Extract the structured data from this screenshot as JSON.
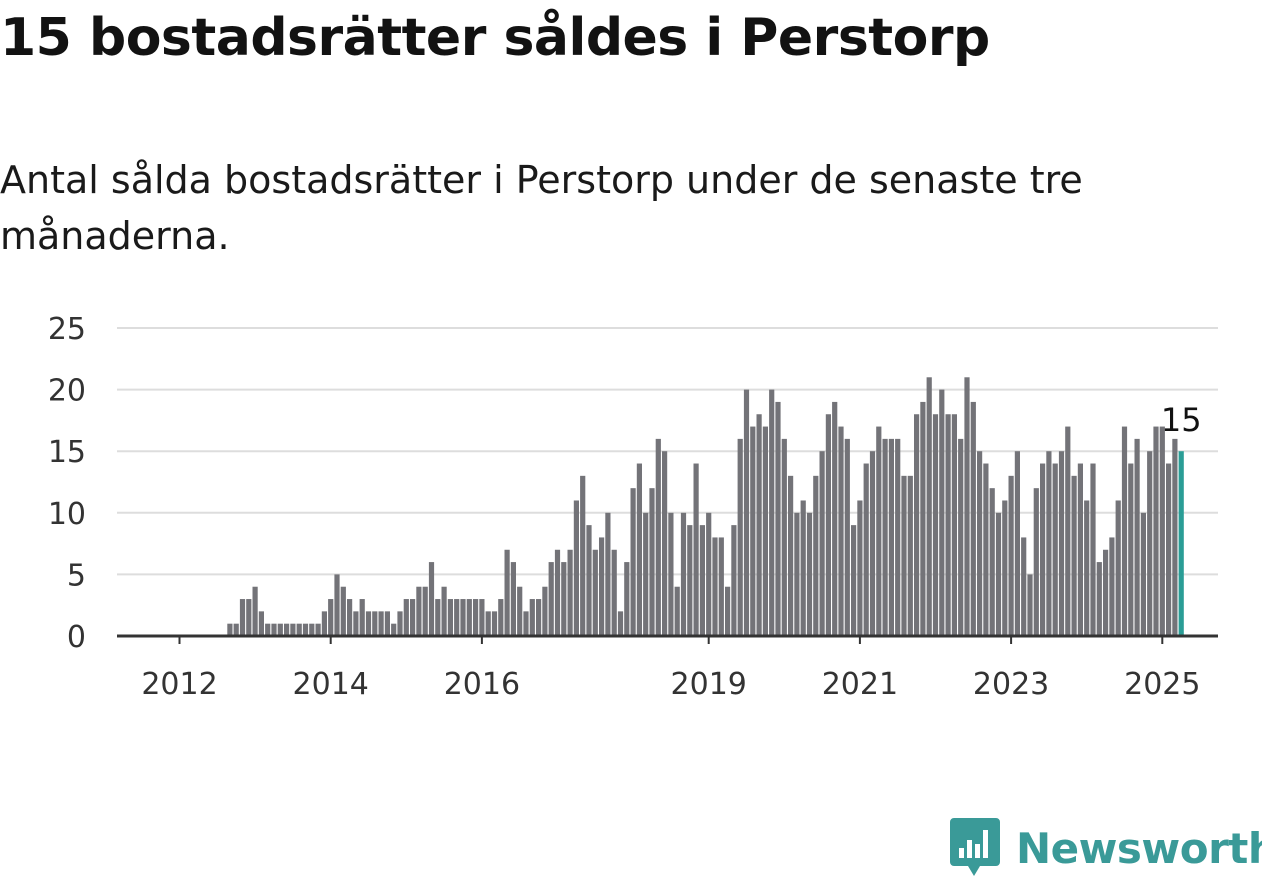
{
  "title": "15 bostadsrätter såldes i Perstorp",
  "subtitle": "Antal sålda bostadsrätter i Perstorp under de senaste tre månaderna.",
  "brand": {
    "name": "Newsworthy",
    "icon": "newsworthy-logo-icon",
    "color": "#3a9a98"
  },
  "colors": {
    "bar": "#737378",
    "highlight": "#2a9d96",
    "grid": "#dddddd",
    "axis": "#333333"
  },
  "chart_data": {
    "type": "bar",
    "x_label": "",
    "y_label": "",
    "ylim": [
      0,
      25
    ],
    "y_ticks": [
      "0",
      "5",
      "10",
      "15",
      "20",
      "25"
    ],
    "x_ticks": [
      {
        "label": "2012",
        "index": 8
      },
      {
        "label": "2014",
        "index": 32
      },
      {
        "label": "2016",
        "index": 56
      },
      {
        "label": "2019",
        "index": 92
      },
      {
        "label": "2021",
        "index": 116
      },
      {
        "label": "2023",
        "index": 140
      },
      {
        "label": "2025",
        "index": 164
      }
    ],
    "grid": true,
    "highlight_label": "15",
    "start_month": "2011-01",
    "values": [
      0,
      0,
      0,
      0,
      0,
      0,
      0,
      0,
      0,
      0,
      0,
      0,
      0,
      0,
      0,
      0,
      1,
      1,
      3,
      3,
      4,
      2,
      1,
      1,
      1,
      1,
      1,
      1,
      1,
      1,
      1,
      2,
      3,
      5,
      4,
      3,
      2,
      3,
      2,
      2,
      2,
      2,
      1,
      2,
      3,
      3,
      4,
      4,
      6,
      3,
      4,
      3,
      3,
      3,
      3,
      3,
      3,
      2,
      2,
      3,
      7,
      6,
      4,
      2,
      3,
      3,
      4,
      6,
      7,
      6,
      7,
      11,
      13,
      9,
      7,
      8,
      10,
      7,
      2,
      6,
      12,
      14,
      10,
      12,
      16,
      15,
      10,
      4,
      10,
      9,
      14,
      9,
      10,
      8,
      8,
      4,
      9,
      16,
      20,
      17,
      18,
      17,
      20,
      19,
      16,
      13,
      10,
      11,
      10,
      13,
      15,
      18,
      19,
      17,
      16,
      9,
      11,
      14,
      15,
      17,
      16,
      16,
      16,
      13,
      13,
      18,
      19,
      21,
      18,
      20,
      18,
      18,
      16,
      21,
      19,
      15,
      14,
      12,
      10,
      11,
      13,
      15,
      8,
      5,
      12,
      14,
      15,
      14,
      15,
      17,
      13,
      14,
      11,
      14,
      6,
      7,
      8,
      11,
      17,
      14,
      16,
      10,
      15,
      17,
      17,
      14,
      16,
      15
    ]
  }
}
